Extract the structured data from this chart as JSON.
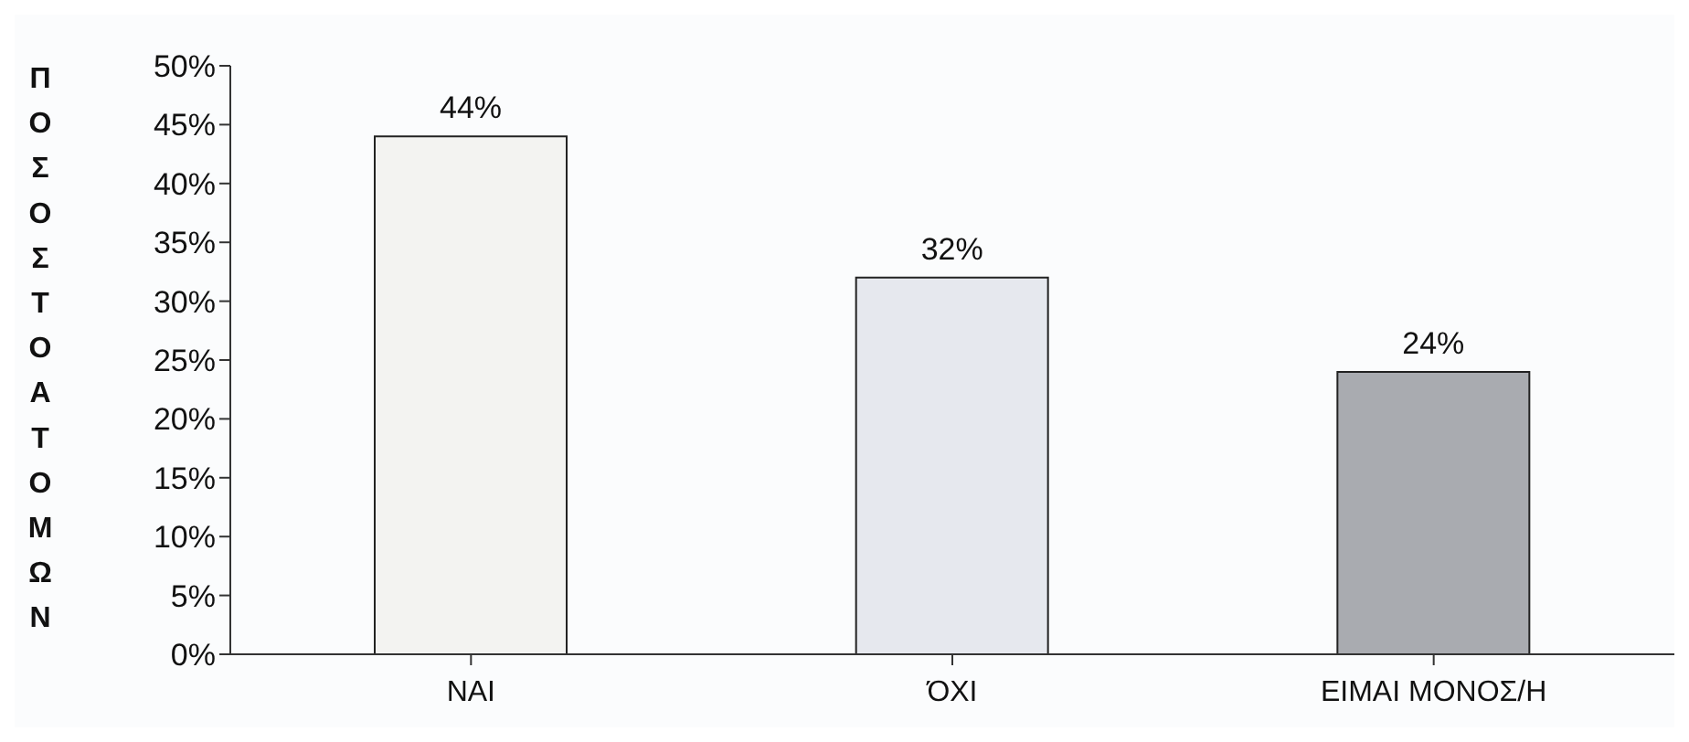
{
  "chart_data": {
    "type": "bar",
    "ylabel": "ΠΟΣΟΣΤΟ ΑΤΟΜΩΝ",
    "categories": [
      "ΝΑΙ",
      "ΌΧΙ",
      "ΕΙΜΑΙ ΜΟΝΟΣ/Η"
    ],
    "values": [
      44,
      32,
      24
    ],
    "colors": [
      "#f3f3f1",
      "#e6e8ee",
      "#a9abb0"
    ],
    "value_labels": [
      "44%",
      "32%",
      "24%"
    ],
    "ylim": [
      0,
      50
    ],
    "yticks": [
      {
        "value": 0,
        "label": "0%"
      },
      {
        "value": 5,
        "label": "5%"
      },
      {
        "value": 10,
        "label": "10%"
      },
      {
        "value": 15,
        "label": "15%"
      },
      {
        "value": 20,
        "label": "20%"
      },
      {
        "value": 25,
        "label": "25%"
      },
      {
        "value": 30,
        "label": "30%"
      },
      {
        "value": 35,
        "label": "35%"
      },
      {
        "value": 40,
        "label": "40%"
      },
      {
        "value": 45,
        "label": "45%"
      },
      {
        "value": 50,
        "label": "50%"
      }
    ],
    "grid": false,
    "legend": false
  }
}
